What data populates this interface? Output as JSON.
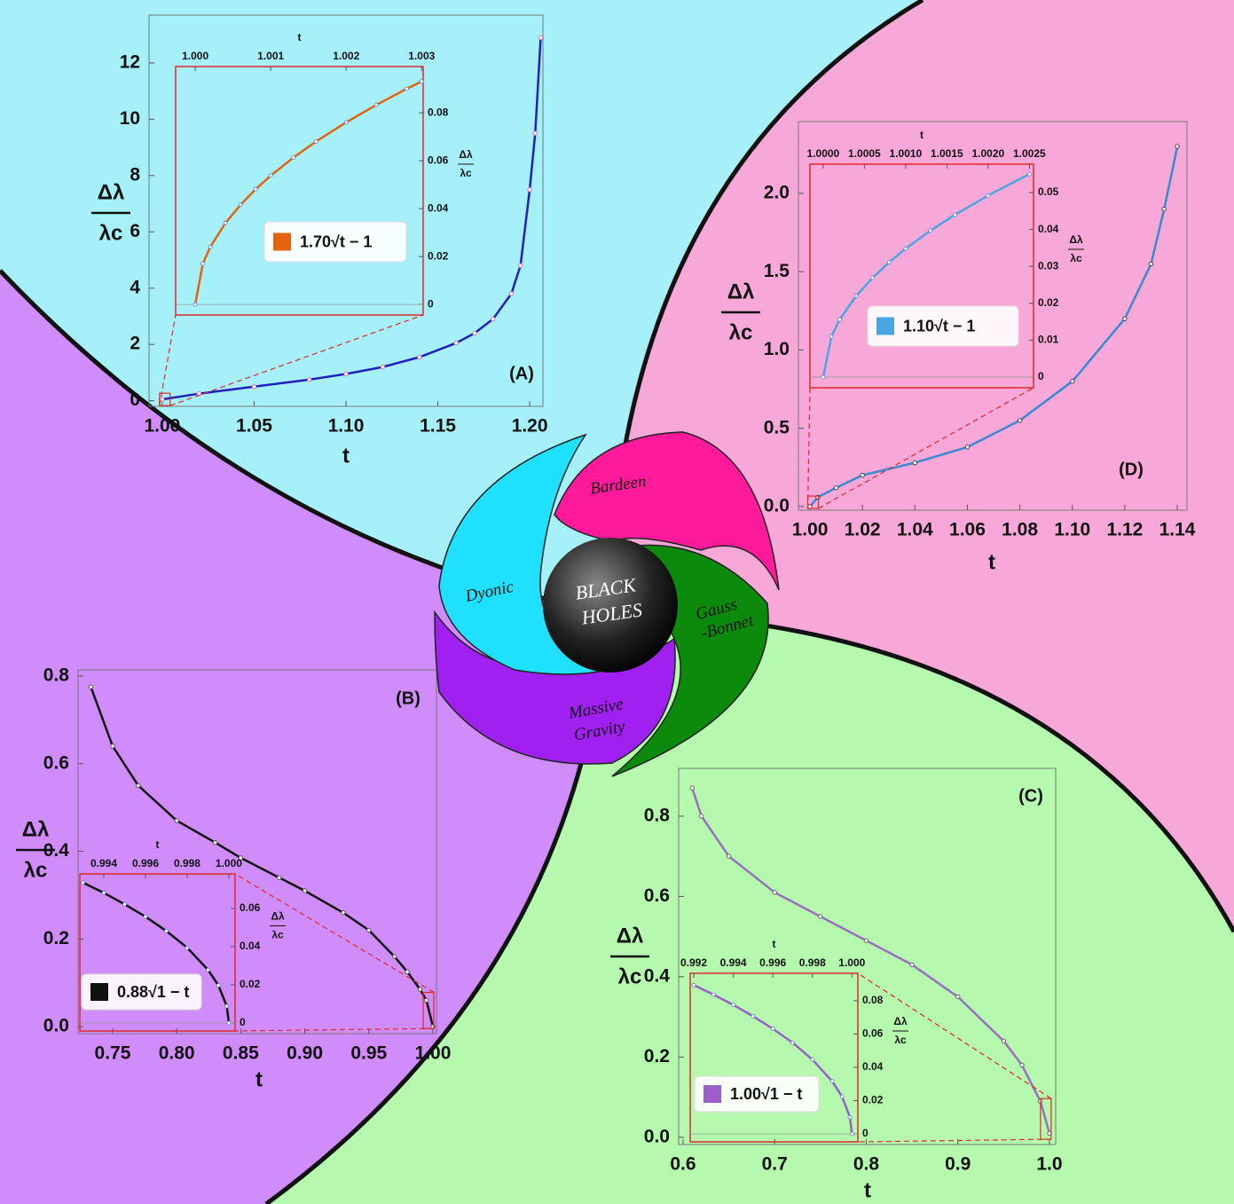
{
  "chart_data": [
    {
      "type": "line",
      "panel_label": "(A)",
      "xlabel": "t",
      "ylabel_top": "Δλ",
      "ylabel_bottom": "λc",
      "x": [
        1.0,
        1.02,
        1.05,
        1.08,
        1.1,
        1.12,
        1.14,
        1.16,
        1.17,
        1.18,
        1.19,
        1.195,
        1.2,
        1.203,
        1.206
      ],
      "values": [
        0.05,
        0.25,
        0.5,
        0.75,
        0.95,
        1.2,
        1.55,
        2.05,
        2.4,
        2.9,
        3.8,
        4.8,
        7.5,
        9.5,
        12.9
      ],
      "color": "#2020c0",
      "marker_color": "#e070a0",
      "xlim": [
        0.9928,
        1.2072
      ],
      "ylim": [
        -0.2,
        13.7
      ],
      "xticks": [
        {
          "value": 1.0,
          "label": "1.00"
        },
        1.05,
        {
          "value": 1.1,
          "label": "1.10"
        },
        1.15,
        {
          "value": 1.2,
          "label": "1.20"
        }
      ],
      "yticks": [
        0,
        2,
        4,
        6,
        8,
        10,
        12
      ],
      "inset": {
        "xlabel": "t",
        "ylabel_top": "Δλ",
        "ylabel_bottom": "λc",
        "x": [
          1.0,
          1.0001,
          1.0002,
          1.0004,
          1.0006,
          1.0008,
          1.001,
          1.0013,
          1.0016,
          1.002,
          1.0024,
          1.0028,
          1.003
        ],
        "series": [
          {
            "name": "1.70√t − 1",
            "color": "#e2640f",
            "values": [
              0,
              0.017,
              0.024,
              0.034,
              0.0416,
              0.0481,
              0.0538,
              0.0613,
              0.068,
              0.076,
              0.0833,
              0.09,
              0.0931
            ]
          }
        ],
        "xlim": [
          0.99974,
          1.00302
        ],
        "ylim": [
          -0.0044,
          0.0993
        ],
        "xticks": [
          {
            "value": 1.0,
            "label": "1.000"
          },
          1.001,
          1.002,
          1.003
        ],
        "yticks": [
          0,
          0.02,
          0.04,
          0.06,
          0.08
        ]
      }
    },
    {
      "type": "line",
      "panel_label": "(B)",
      "xlabel": "t",
      "ylabel_top": "Δλ",
      "ylabel_bottom": "λc",
      "x": [
        0.733,
        0.75,
        0.77,
        0.8,
        0.83,
        0.85,
        0.88,
        0.9,
        0.93,
        0.95,
        0.97,
        0.98,
        0.99,
        0.995,
        1.0
      ],
      "values": [
        0.775,
        0.64,
        0.55,
        0.47,
        0.42,
        0.385,
        0.34,
        0.31,
        0.26,
        0.22,
        0.16,
        0.125,
        0.085,
        0.06,
        0.0
      ],
      "color": "#111111",
      "marker_color": "#555555",
      "xlim": [
        0.723,
        1.0028
      ],
      "ylim": [
        -0.016,
        0.814
      ],
      "xticks": [
        0.75,
        {
          "value": 0.8,
          "label": "0.80"
        },
        0.85,
        {
          "value": 0.9,
          "label": "0.90"
        },
        0.95,
        {
          "value": 1.0,
          "label": "1.00"
        }
      ],
      "yticks": [
        {
          "value": 0,
          "label": "0.0"
        },
        0.2,
        0.4,
        0.6,
        0.8
      ],
      "inset": {
        "xlabel": "t",
        "ylabel_top": "Δλ",
        "ylabel_bottom": "λc",
        "x": [
          0.993,
          0.994,
          0.995,
          0.996,
          0.997,
          0.998,
          0.999,
          0.9995,
          0.9999,
          1.0
        ],
        "series": [
          {
            "name": "0.88√1 − t",
            "color": "#111111",
            "values": [
              0.0736,
              0.0682,
              0.0622,
              0.0557,
              0.0482,
              0.0394,
              0.0278,
              0.0197,
              0.0088,
              0
            ]
          }
        ],
        "xlim": [
          0.99285,
          1.0003
        ],
        "ylim": [
          -0.0042,
          0.0781
        ],
        "xticks": [
          0.994,
          0.996,
          0.998,
          {
            "value": 1.0,
            "label": "1.000"
          }
        ],
        "yticks": [
          0,
          0.02,
          0.04,
          0.06
        ]
      }
    },
    {
      "type": "line",
      "panel_label": "(C)",
      "xlabel": "t",
      "ylabel_top": "Δλ",
      "ylabel_bottom": "λc",
      "x": [
        0.61,
        0.62,
        0.65,
        0.7,
        0.75,
        0.8,
        0.85,
        0.9,
        0.95,
        0.97,
        0.99,
        1.0
      ],
      "values": [
        0.87,
        0.8,
        0.7,
        0.61,
        0.55,
        0.49,
        0.43,
        0.35,
        0.24,
        0.18,
        0.09,
        0.01
      ],
      "color": "#9b6fc0",
      "marker_color": "#666666",
      "xlim": [
        0.5952,
        1.0068
      ],
      "ylim": [
        -0.018,
        0.919
      ],
      "xticks": [
        0.6,
        0.7,
        0.8,
        0.9,
        {
          "value": 1.0,
          "label": "1.0"
        }
      ],
      "yticks": [
        {
          "value": 0,
          "label": "0.0"
        },
        0.2,
        0.4,
        0.6,
        0.8
      ],
      "inset": {
        "xlabel": "t",
        "ylabel_top": "Δλ",
        "ylabel_bottom": "λc",
        "x": [
          0.992,
          0.993,
          0.994,
          0.995,
          0.996,
          0.997,
          0.998,
          0.999,
          0.9995,
          0.9999,
          1.0
        ],
        "series": [
          {
            "name": "1.00√1 − t",
            "color": "#9b5fc8",
            "values": [
              0.0894,
              0.0837,
              0.0775,
              0.0707,
              0.0632,
              0.0548,
              0.0447,
              0.0316,
              0.0224,
              0.01,
              0
            ]
          }
        ],
        "xlim": [
          0.99182,
          1.0003
        ],
        "ylim": [
          -0.0048,
          0.0965
        ],
        "xticks": [
          0.992,
          0.994,
          0.996,
          0.998,
          {
            "value": 1.0,
            "label": "1.000"
          }
        ],
        "yticks": [
          0,
          0.02,
          0.04,
          0.06,
          0.08
        ]
      }
    },
    {
      "type": "line",
      "panel_label": "(D)",
      "xlabel": "t",
      "ylabel_top": "Δλ",
      "ylabel_bottom": "λc",
      "x": [
        1.0,
        1.003,
        1.01,
        1.02,
        1.04,
        1.06,
        1.08,
        1.1,
        1.12,
        1.13,
        1.135,
        1.14
      ],
      "values": [
        0.0,
        0.06,
        0.12,
        0.2,
        0.28,
        0.38,
        0.55,
        0.8,
        1.2,
        1.55,
        1.9,
        2.3
      ],
      "color": "#3a8ad0",
      "marker_color": "#444444",
      "xlim": [
        0.9956,
        1.1437
      ],
      "ylim": [
        -0.023,
        2.459
      ],
      "xticks": [
        {
          "value": 1.0,
          "label": "1.00"
        },
        1.02,
        1.04,
        1.06,
        1.08,
        {
          "value": 1.1,
          "label": "1.10"
        },
        1.12,
        1.14
      ],
      "yticks": [
        {
          "value": 0,
          "label": "0.0"
        },
        0.5,
        {
          "value": 1,
          "label": "1.0"
        },
        1.5,
        {
          "value": 2,
          "label": "2.0"
        }
      ],
      "inset": {
        "xlabel": "t",
        "ylabel_top": "Δλ",
        "ylabel_bottom": "λc",
        "x": [
          1.0,
          1.0001,
          1.0002,
          1.0004,
          1.0006,
          1.0008,
          1.001,
          1.0013,
          1.0016,
          1.002,
          1.0025
        ],
        "series": [
          {
            "name": "1.10√t − 1",
            "color": "#4aa6e0",
            "values": [
              0,
              0.011,
              0.0156,
              0.022,
              0.0269,
              0.0311,
              0.0348,
              0.0397,
              0.044,
              0.0492,
              0.055
            ]
          }
        ],
        "xlim": [
          0.99984,
          1.00255
        ],
        "ylim": [
          -0.0029,
          0.0577
        ],
        "xticks": [
          {
            "value": 1.0,
            "label": "1.0000"
          },
          1.0005,
          {
            "value": 1.001,
            "label": "1.0010"
          },
          1.0015,
          {
            "value": 1.002,
            "label": "1.0020"
          },
          1.0025
        ],
        "yticks": [
          0,
          0.01,
          0.02,
          0.03,
          0.04,
          0.05
        ]
      }
    }
  ],
  "diagram": {
    "center": [
      "BLACK",
      "HOLES"
    ],
    "petals": [
      "Bardeen",
      "Dyonic",
      "Gauss",
      "-Bonnet",
      "Massive",
      "Gravity"
    ]
  }
}
